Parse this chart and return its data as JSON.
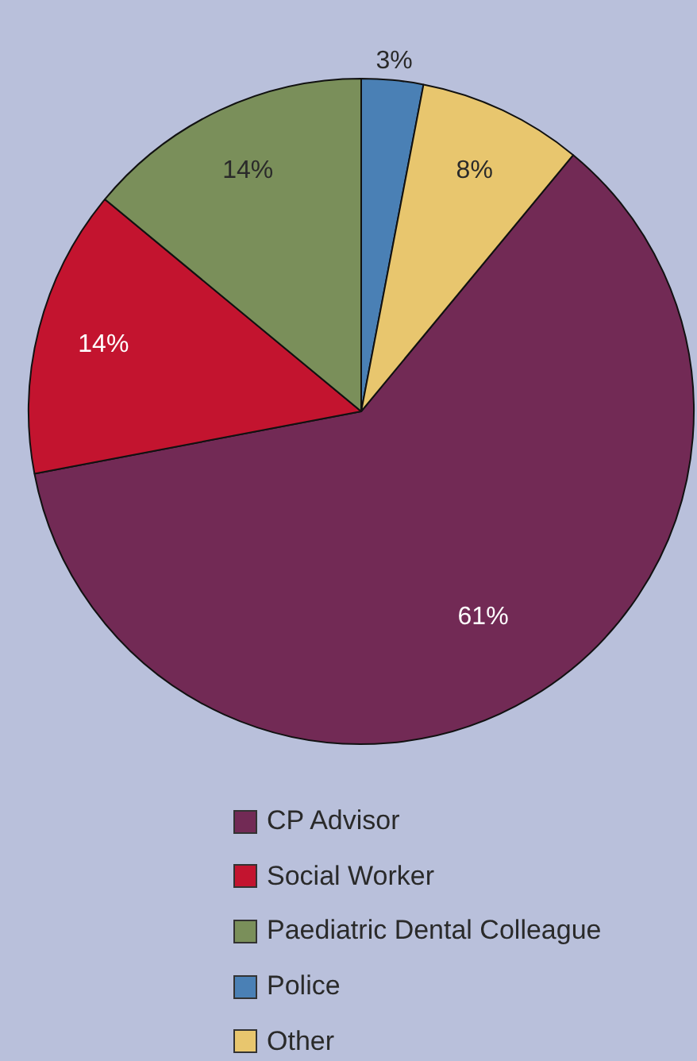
{
  "chart_data": {
    "type": "pie",
    "categories": [
      "CP Advisor",
      "Social Worker",
      "Paediatric Dental Colleague",
      "Police",
      "Other"
    ],
    "values": [
      61,
      14,
      14,
      3,
      8
    ],
    "value_labels": [
      "61%",
      "14%",
      "14%",
      "3%",
      "8%"
    ],
    "colors": [
      "#722a55",
      "#c3142f",
      "#7a8f5a",
      "#4a80b5",
      "#e8c66e"
    ],
    "legend": "bottom"
  }
}
